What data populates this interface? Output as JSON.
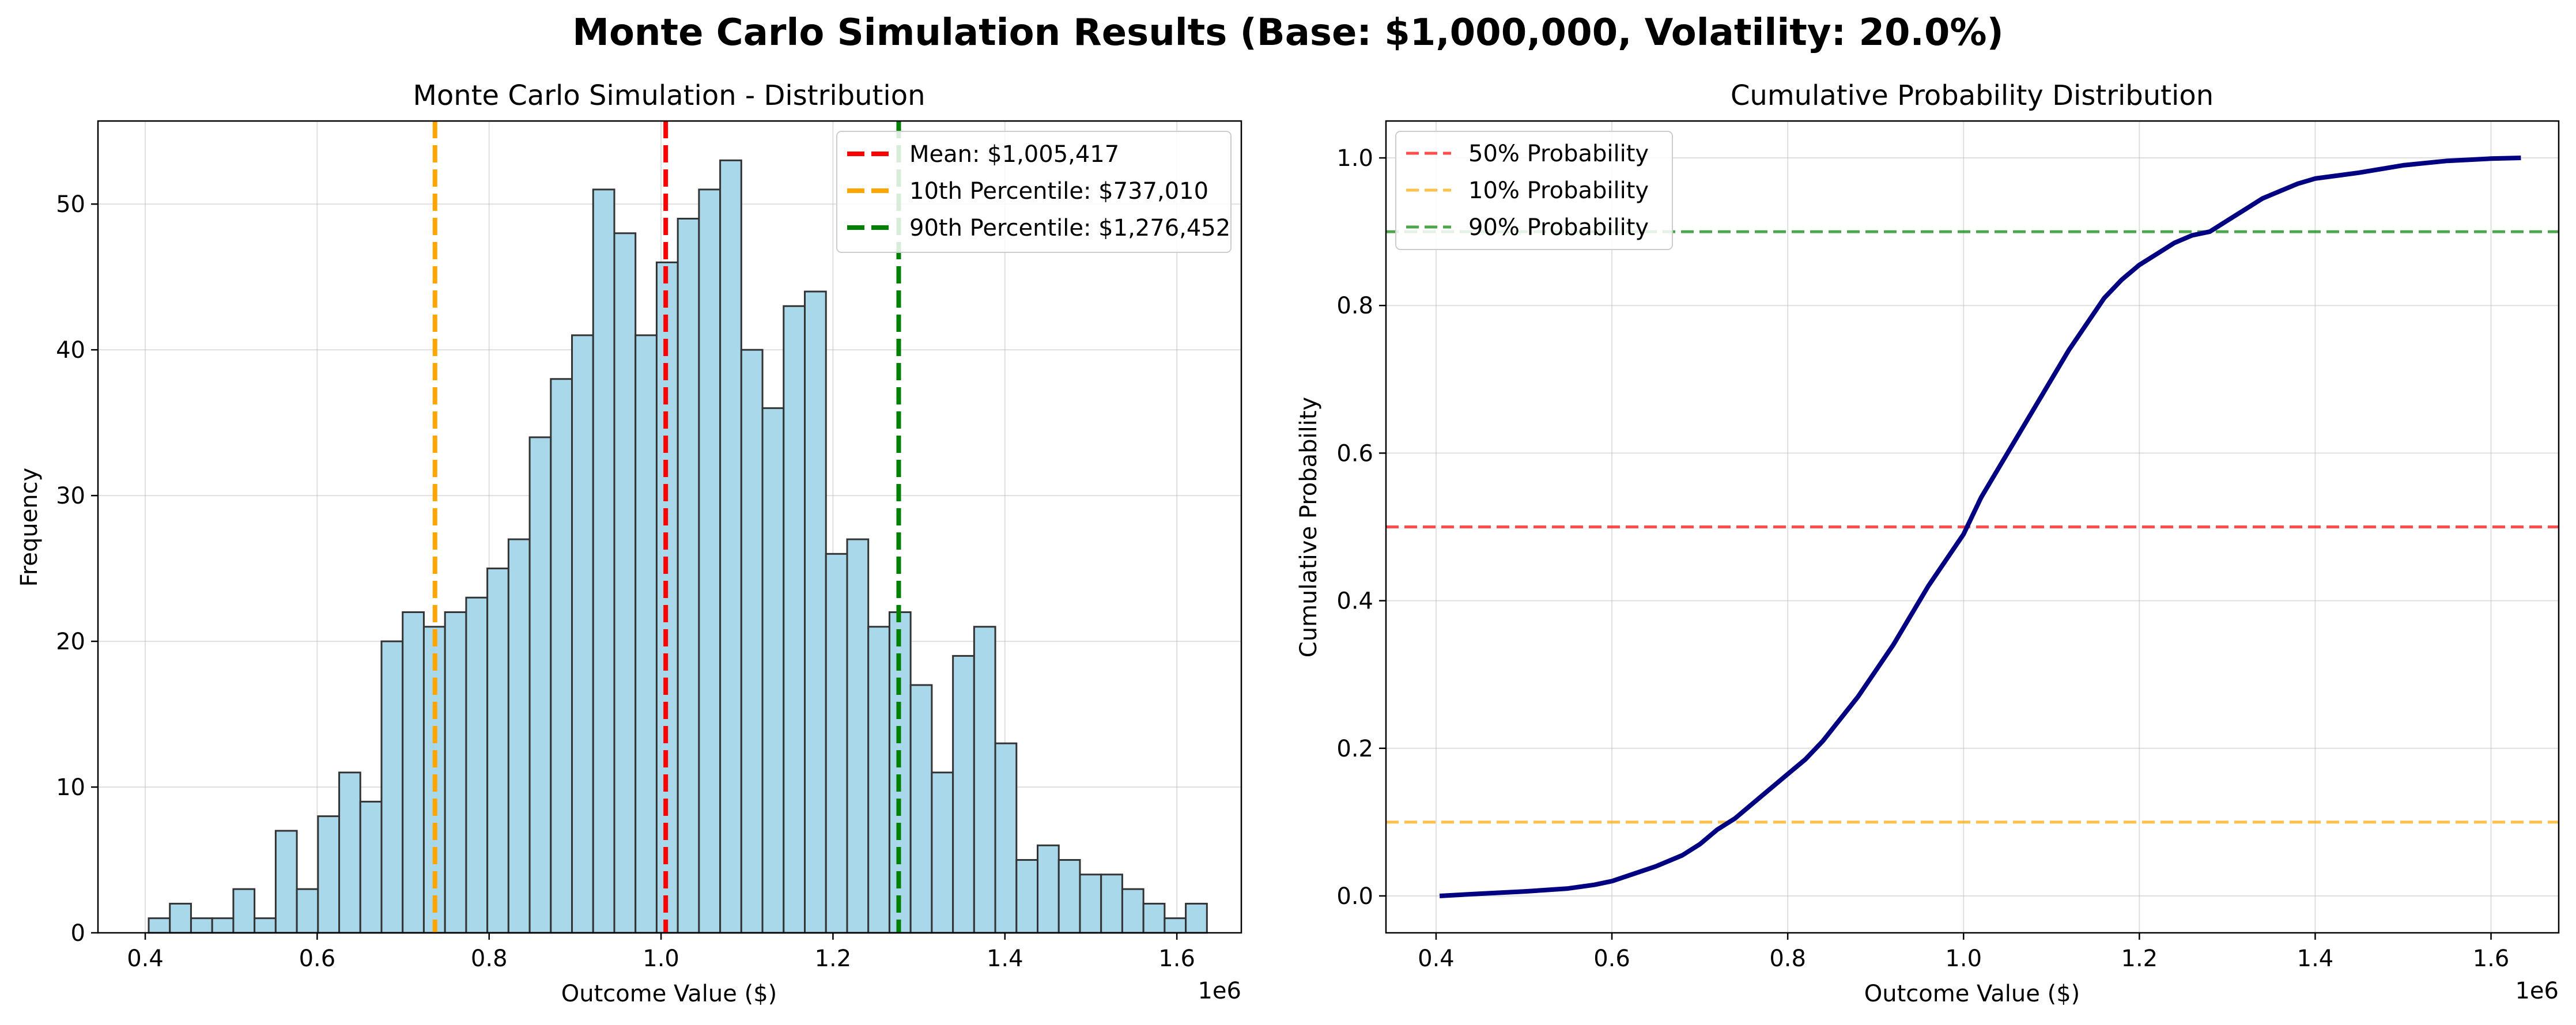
{
  "figure": {
    "title": "Monte Carlo Simulation Results (Base: $1,000,000, Volatility: 20.0%)"
  },
  "chart_data": [
    {
      "type": "bar",
      "title": "Monte Carlo Simulation - Distribution",
      "xlabel": "Outcome Value ($)",
      "ylabel": "Frequency",
      "x_offset_label": "1e6",
      "xlim": [
        0.345,
        1.675
      ],
      "ylim": [
        0,
        55.7
      ],
      "xticks": [
        0.4,
        0.6,
        0.8,
        1.0,
        1.2,
        1.4,
        1.6
      ],
      "xtick_labels": [
        "0.4",
        "0.6",
        "0.8",
        "1.0",
        "1.2",
        "1.4",
        "1.6"
      ],
      "yticks": [
        0,
        10,
        20,
        30,
        40,
        50
      ],
      "ytick_labels": [
        "0",
        "10",
        "20",
        "30",
        "40",
        "50"
      ],
      "grid": true,
      "bin_start": 0.404,
      "bin_width": 0.02462,
      "values": [
        1,
        2,
        1,
        1,
        3,
        1,
        7,
        3,
        8,
        11,
        9,
        20,
        22,
        21,
        22,
        23,
        25,
        27,
        34,
        38,
        41,
        51,
        48,
        41,
        46,
        49,
        51,
        53,
        40,
        36,
        43,
        44,
        26,
        27,
        21,
        22,
        17,
        11,
        19,
        21,
        13,
        5,
        6,
        5,
        4,
        4,
        3,
        2,
        1,
        2
      ],
      "bar_color": "#a8d8ea",
      "vlines": [
        {
          "label": "Mean: $1,005,417",
          "x": 1.005417,
          "color": "#ff0000"
        },
        {
          "label": "10th Percentile: $737,010",
          "x": 0.73701,
          "color": "#ffa500"
        },
        {
          "label": "90th Percentile: $1,276,452",
          "x": 1.276452,
          "color": "#008000"
        }
      ],
      "legend_position": "upper right"
    },
    {
      "type": "line",
      "title": "Cumulative Probability Distribution",
      "xlabel": "Outcome Value ($)",
      "ylabel": "Cumulative Probability",
      "x_offset_label": "1e6",
      "xlim": [
        0.343,
        1.677
      ],
      "ylim": [
        -0.05,
        1.05
      ],
      "xticks": [
        0.4,
        0.6,
        0.8,
        1.0,
        1.2,
        1.4,
        1.6
      ],
      "xtick_labels": [
        "0.4",
        "0.6",
        "0.8",
        "1.0",
        "1.2",
        "1.4",
        "1.6"
      ],
      "yticks": [
        0.0,
        0.2,
        0.4,
        0.6,
        0.8,
        1.0
      ],
      "ytick_labels": [
        "0.0",
        "0.2",
        "0.4",
        "0.6",
        "0.8",
        "1.0"
      ],
      "grid": true,
      "line_color": "#000080",
      "x": [
        0.404,
        0.45,
        0.5,
        0.55,
        0.58,
        0.6,
        0.62,
        0.65,
        0.68,
        0.7,
        0.72,
        0.74,
        0.76,
        0.78,
        0.8,
        0.82,
        0.84,
        0.86,
        0.88,
        0.9,
        0.92,
        0.94,
        0.96,
        0.98,
        1.0,
        1.02,
        1.04,
        1.06,
        1.08,
        1.1,
        1.12,
        1.14,
        1.16,
        1.18,
        1.2,
        1.22,
        1.24,
        1.26,
        1.28,
        1.3,
        1.32,
        1.34,
        1.36,
        1.38,
        1.4,
        1.45,
        1.5,
        1.55,
        1.6,
        1.634
      ],
      "y": [
        0.0,
        0.003,
        0.006,
        0.01,
        0.015,
        0.02,
        0.028,
        0.04,
        0.055,
        0.07,
        0.09,
        0.105,
        0.125,
        0.145,
        0.165,
        0.185,
        0.21,
        0.24,
        0.27,
        0.305,
        0.34,
        0.38,
        0.42,
        0.455,
        0.49,
        0.54,
        0.58,
        0.62,
        0.66,
        0.7,
        0.74,
        0.775,
        0.81,
        0.835,
        0.855,
        0.87,
        0.885,
        0.895,
        0.9,
        0.915,
        0.93,
        0.945,
        0.955,
        0.965,
        0.972,
        0.98,
        0.99,
        0.996,
        0.999,
        1.0
      ],
      "hlines": [
        {
          "label": "50% Probability",
          "y": 0.5,
          "color": "#ff0000"
        },
        {
          "label": "10% Probability",
          "y": 0.1,
          "color": "#ffa500"
        },
        {
          "label": "90% Probability",
          "y": 0.9,
          "color": "#008000"
        }
      ],
      "legend_position": "upper left"
    }
  ]
}
